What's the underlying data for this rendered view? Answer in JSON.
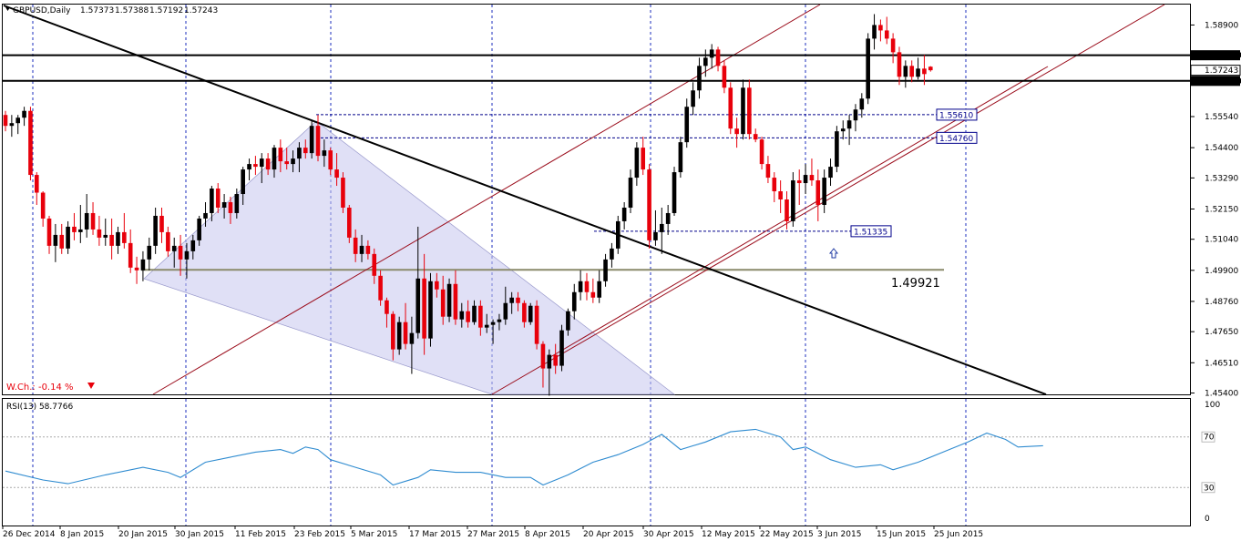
{
  "chart_data": {
    "type": "candlestick",
    "title": "GBPUSD,Daily",
    "ohlc_header": {
      "open": "1.57373",
      "high": "1.57388",
      "low": "1.57192",
      "close": "1.57243"
    },
    "y_ticks": [
      "1.58900",
      "1.57790",
      "1.57243",
      "1.56850",
      "1.55540",
      "1.54400",
      "1.53290",
      "1.52150",
      "1.51040",
      "1.49900",
      "1.48760",
      "1.47650",
      "1.46510",
      "1.45400"
    ],
    "x_ticks": [
      "26 Dec 2014",
      "8 Jan 2015",
      "20 Jan 2015",
      "30 Jan 2015",
      "11 Feb 2015",
      "23 Feb 2015",
      "5 Mar 2015",
      "17 Mar 2015",
      "27 Mar 2015",
      "8 Apr 2015",
      "20 Apr 2015",
      "30 Apr 2015",
      "12 May 2015",
      "22 May 2015",
      "3 Jun 2015",
      "15 Jun 2015",
      "25 Jun 2015"
    ],
    "ylim": [
      1.4535,
      1.5965
    ],
    "candles": [
      {
        "o": 1.556,
        "h": 1.5575,
        "l": 1.55,
        "c": 1.552
      },
      {
        "o": 1.552,
        "h": 1.556,
        "l": 1.548,
        "c": 1.553
      },
      {
        "o": 1.553,
        "h": 1.556,
        "l": 1.549,
        "c": 1.555
      },
      {
        "o": 1.555,
        "h": 1.559,
        "l": 1.552,
        "c": 1.5575
      },
      {
        "o": 1.5575,
        "h": 1.559,
        "l": 1.532,
        "c": 1.534
      },
      {
        "o": 1.534,
        "h": 1.535,
        "l": 1.523,
        "c": 1.5275
      },
      {
        "o": 1.5275,
        "h": 1.528,
        "l": 1.515,
        "c": 1.518
      },
      {
        "o": 1.518,
        "h": 1.519,
        "l": 1.505,
        "c": 1.508
      },
      {
        "o": 1.508,
        "h": 1.516,
        "l": 1.502,
        "c": 1.512
      },
      {
        "o": 1.512,
        "h": 1.516,
        "l": 1.505,
        "c": 1.507
      },
      {
        "o": 1.507,
        "h": 1.517,
        "l": 1.505,
        "c": 1.515
      },
      {
        "o": 1.515,
        "h": 1.52,
        "l": 1.51,
        "c": 1.513
      },
      {
        "o": 1.513,
        "h": 1.523,
        "l": 1.509,
        "c": 1.514
      },
      {
        "o": 1.514,
        "h": 1.527,
        "l": 1.511,
        "c": 1.52
      },
      {
        "o": 1.52,
        "h": 1.524,
        "l": 1.512,
        "c": 1.514
      },
      {
        "o": 1.514,
        "h": 1.519,
        "l": 1.508,
        "c": 1.511
      },
      {
        "o": 1.511,
        "h": 1.518,
        "l": 1.508,
        "c": 1.512
      },
      {
        "o": 1.512,
        "h": 1.518,
        "l": 1.503,
        "c": 1.508
      },
      {
        "o": 1.508,
        "h": 1.515,
        "l": 1.505,
        "c": 1.513
      },
      {
        "o": 1.513,
        "h": 1.52,
        "l": 1.507,
        "c": 1.509
      },
      {
        "o": 1.509,
        "h": 1.514,
        "l": 1.498,
        "c": 1.5
      },
      {
        "o": 1.5,
        "h": 1.504,
        "l": 1.494,
        "c": 1.499
      },
      {
        "o": 1.499,
        "h": 1.506,
        "l": 1.495,
        "c": 1.503
      },
      {
        "o": 1.503,
        "h": 1.511,
        "l": 1.499,
        "c": 1.508
      },
      {
        "o": 1.508,
        "h": 1.522,
        "l": 1.505,
        "c": 1.519
      },
      {
        "o": 1.519,
        "h": 1.522,
        "l": 1.509,
        "c": 1.513
      },
      {
        "o": 1.513,
        "h": 1.515,
        "l": 1.504,
        "c": 1.506
      },
      {
        "o": 1.506,
        "h": 1.511,
        "l": 1.5,
        "c": 1.508
      },
      {
        "o": 1.508,
        "h": 1.512,
        "l": 1.497,
        "c": 1.503
      },
      {
        "o": 1.503,
        "h": 1.509,
        "l": 1.496,
        "c": 1.506
      },
      {
        "o": 1.506,
        "h": 1.512,
        "l": 1.503,
        "c": 1.51
      },
      {
        "o": 1.51,
        "h": 1.519,
        "l": 1.508,
        "c": 1.518
      },
      {
        "o": 1.518,
        "h": 1.524,
        "l": 1.515,
        "c": 1.52
      },
      {
        "o": 1.52,
        "h": 1.53,
        "l": 1.517,
        "c": 1.529
      },
      {
        "o": 1.529,
        "h": 1.531,
        "l": 1.52,
        "c": 1.522
      },
      {
        "o": 1.522,
        "h": 1.527,
        "l": 1.518,
        "c": 1.524
      },
      {
        "o": 1.524,
        "h": 1.526,
        "l": 1.516,
        "c": 1.52
      },
      {
        "o": 1.52,
        "h": 1.529,
        "l": 1.518,
        "c": 1.527
      },
      {
        "o": 1.527,
        "h": 1.537,
        "l": 1.523,
        "c": 1.536
      },
      {
        "o": 1.536,
        "h": 1.54,
        "l": 1.532,
        "c": 1.538
      },
      {
        "o": 1.538,
        "h": 1.541,
        "l": 1.534,
        "c": 1.537
      },
      {
        "o": 1.537,
        "h": 1.542,
        "l": 1.531,
        "c": 1.54
      },
      {
        "o": 1.54,
        "h": 1.542,
        "l": 1.534,
        "c": 1.536
      },
      {
        "o": 1.536,
        "h": 1.545,
        "l": 1.533,
        "c": 1.544
      },
      {
        "o": 1.544,
        "h": 1.547,
        "l": 1.535,
        "c": 1.539
      },
      {
        "o": 1.539,
        "h": 1.544,
        "l": 1.536,
        "c": 1.538
      },
      {
        "o": 1.538,
        "h": 1.543,
        "l": 1.535,
        "c": 1.54
      },
      {
        "o": 1.54,
        "h": 1.546,
        "l": 1.535,
        "c": 1.544
      },
      {
        "o": 1.544,
        "h": 1.547,
        "l": 1.54,
        "c": 1.542
      },
      {
        "o": 1.542,
        "h": 1.554,
        "l": 1.54,
        "c": 1.552
      },
      {
        "o": 1.552,
        "h": 1.556,
        "l": 1.539,
        "c": 1.541
      },
      {
        "o": 1.541,
        "h": 1.547,
        "l": 1.537,
        "c": 1.543
      },
      {
        "o": 1.543,
        "h": 1.544,
        "l": 1.534,
        "c": 1.536
      },
      {
        "o": 1.536,
        "h": 1.542,
        "l": 1.53,
        "c": 1.533
      },
      {
        "o": 1.533,
        "h": 1.535,
        "l": 1.52,
        "c": 1.522
      },
      {
        "o": 1.522,
        "h": 1.523,
        "l": 1.509,
        "c": 1.511
      },
      {
        "o": 1.511,
        "h": 1.514,
        "l": 1.502,
        "c": 1.505
      },
      {
        "o": 1.505,
        "h": 1.512,
        "l": 1.502,
        "c": 1.508
      },
      {
        "o": 1.508,
        "h": 1.51,
        "l": 1.503,
        "c": 1.505
      },
      {
        "o": 1.505,
        "h": 1.507,
        "l": 1.494,
        "c": 1.497
      },
      {
        "o": 1.497,
        "h": 1.499,
        "l": 1.486,
        "c": 1.488
      },
      {
        "o": 1.488,
        "h": 1.489,
        "l": 1.478,
        "c": 1.483
      },
      {
        "o": 1.483,
        "h": 1.484,
        "l": 1.466,
        "c": 1.47
      },
      {
        "o": 1.47,
        "h": 1.482,
        "l": 1.468,
        "c": 1.48
      },
      {
        "o": 1.48,
        "h": 1.487,
        "l": 1.47,
        "c": 1.472
      },
      {
        "o": 1.472,
        "h": 1.482,
        "l": 1.461,
        "c": 1.476
      },
      {
        "o": 1.476,
        "h": 1.515,
        "l": 1.474,
        "c": 1.496
      },
      {
        "o": 1.496,
        "h": 1.505,
        "l": 1.468,
        "c": 1.474
      },
      {
        "o": 1.474,
        "h": 1.498,
        "l": 1.471,
        "c": 1.495
      },
      {
        "o": 1.495,
        "h": 1.498,
        "l": 1.489,
        "c": 1.492
      },
      {
        "o": 1.492,
        "h": 1.497,
        "l": 1.479,
        "c": 1.482
      },
      {
        "o": 1.482,
        "h": 1.496,
        "l": 1.48,
        "c": 1.494
      },
      {
        "o": 1.494,
        "h": 1.499,
        "l": 1.479,
        "c": 1.481
      },
      {
        "o": 1.481,
        "h": 1.487,
        "l": 1.478,
        "c": 1.484
      },
      {
        "o": 1.484,
        "h": 1.488,
        "l": 1.478,
        "c": 1.48
      },
      {
        "o": 1.48,
        "h": 1.488,
        "l": 1.479,
        "c": 1.486
      },
      {
        "o": 1.486,
        "h": 1.488,
        "l": 1.475,
        "c": 1.478
      },
      {
        "o": 1.478,
        "h": 1.483,
        "l": 1.476,
        "c": 1.479
      },
      {
        "o": 1.479,
        "h": 1.481,
        "l": 1.472,
        "c": 1.48
      },
      {
        "o": 1.48,
        "h": 1.483,
        "l": 1.477,
        "c": 1.481
      },
      {
        "o": 1.481,
        "h": 1.493,
        "l": 1.479,
        "c": 1.487
      },
      {
        "o": 1.487,
        "h": 1.491,
        "l": 1.483,
        "c": 1.489
      },
      {
        "o": 1.489,
        "h": 1.491,
        "l": 1.484,
        "c": 1.487
      },
      {
        "o": 1.487,
        "h": 1.488,
        "l": 1.478,
        "c": 1.48
      },
      {
        "o": 1.48,
        "h": 1.487,
        "l": 1.479,
        "c": 1.486
      },
      {
        "o": 1.486,
        "h": 1.488,
        "l": 1.47,
        "c": 1.472
      },
      {
        "o": 1.472,
        "h": 1.473,
        "l": 1.456,
        "c": 1.463
      },
      {
        "o": 1.463,
        "h": 1.47,
        "l": 1.453,
        "c": 1.468
      },
      {
        "o": 1.468,
        "h": 1.472,
        "l": 1.461,
        "c": 1.464
      },
      {
        "o": 1.464,
        "h": 1.479,
        "l": 1.462,
        "c": 1.477
      },
      {
        "o": 1.477,
        "h": 1.485,
        "l": 1.475,
        "c": 1.484
      },
      {
        "o": 1.484,
        "h": 1.494,
        "l": 1.481,
        "c": 1.491
      },
      {
        "o": 1.491,
        "h": 1.499,
        "l": 1.488,
        "c": 1.495
      },
      {
        "o": 1.495,
        "h": 1.498,
        "l": 1.488,
        "c": 1.491
      },
      {
        "o": 1.491,
        "h": 1.496,
        "l": 1.487,
        "c": 1.489
      },
      {
        "o": 1.489,
        "h": 1.499,
        "l": 1.487,
        "c": 1.495
      },
      {
        "o": 1.495,
        "h": 1.505,
        "l": 1.493,
        "c": 1.503
      },
      {
        "o": 1.503,
        "h": 1.509,
        "l": 1.5,
        "c": 1.507
      },
      {
        "o": 1.507,
        "h": 1.519,
        "l": 1.505,
        "c": 1.517
      },
      {
        "o": 1.517,
        "h": 1.524,
        "l": 1.514,
        "c": 1.522
      },
      {
        "o": 1.522,
        "h": 1.536,
        "l": 1.52,
        "c": 1.533
      },
      {
        "o": 1.533,
        "h": 1.546,
        "l": 1.53,
        "c": 1.544
      },
      {
        "o": 1.544,
        "h": 1.548,
        "l": 1.534,
        "c": 1.536
      },
      {
        "o": 1.536,
        "h": 1.538,
        "l": 1.507,
        "c": 1.51
      },
      {
        "o": 1.51,
        "h": 1.521,
        "l": 1.508,
        "c": 1.513
      },
      {
        "o": 1.513,
        "h": 1.522,
        "l": 1.505,
        "c": 1.516
      },
      {
        "o": 1.516,
        "h": 1.523,
        "l": 1.512,
        "c": 1.52
      },
      {
        "o": 1.52,
        "h": 1.537,
        "l": 1.519,
        "c": 1.535
      },
      {
        "o": 1.535,
        "h": 1.548,
        "l": 1.533,
        "c": 1.546
      },
      {
        "o": 1.546,
        "h": 1.562,
        "l": 1.544,
        "c": 1.559
      },
      {
        "o": 1.559,
        "h": 1.568,
        "l": 1.556,
        "c": 1.565
      },
      {
        "o": 1.565,
        "h": 1.577,
        "l": 1.562,
        "c": 1.574
      },
      {
        "o": 1.574,
        "h": 1.58,
        "l": 1.57,
        "c": 1.577
      },
      {
        "o": 1.577,
        "h": 1.582,
        "l": 1.573,
        "c": 1.58
      },
      {
        "o": 1.58,
        "h": 1.581,
        "l": 1.572,
        "c": 1.574
      },
      {
        "o": 1.574,
        "h": 1.576,
        "l": 1.564,
        "c": 1.566
      },
      {
        "o": 1.566,
        "h": 1.568,
        "l": 1.549,
        "c": 1.551
      },
      {
        "o": 1.551,
        "h": 1.555,
        "l": 1.544,
        "c": 1.549
      },
      {
        "o": 1.549,
        "h": 1.569,
        "l": 1.547,
        "c": 1.566
      },
      {
        "o": 1.566,
        "h": 1.569,
        "l": 1.547,
        "c": 1.549
      },
      {
        "o": 1.549,
        "h": 1.551,
        "l": 1.546,
        "c": 1.547
      },
      {
        "o": 1.547,
        "h": 1.548,
        "l": 1.536,
        "c": 1.538
      },
      {
        "o": 1.538,
        "h": 1.541,
        "l": 1.531,
        "c": 1.533
      },
      {
        "o": 1.533,
        "h": 1.535,
        "l": 1.524,
        "c": 1.528
      },
      {
        "o": 1.528,
        "h": 1.532,
        "l": 1.52,
        "c": 1.525
      },
      {
        "o": 1.525,
        "h": 1.528,
        "l": 1.514,
        "c": 1.517
      },
      {
        "o": 1.517,
        "h": 1.535,
        "l": 1.515,
        "c": 1.532
      },
      {
        "o": 1.532,
        "h": 1.536,
        "l": 1.523,
        "c": 1.531
      },
      {
        "o": 1.531,
        "h": 1.538,
        "l": 1.527,
        "c": 1.534
      },
      {
        "o": 1.534,
        "h": 1.54,
        "l": 1.53,
        "c": 1.532
      },
      {
        "o": 1.532,
        "h": 1.536,
        "l": 1.517,
        "c": 1.523
      },
      {
        "o": 1.523,
        "h": 1.536,
        "l": 1.52,
        "c": 1.533
      },
      {
        "o": 1.533,
        "h": 1.54,
        "l": 1.53,
        "c": 1.537
      },
      {
        "o": 1.537,
        "h": 1.552,
        "l": 1.535,
        "c": 1.55
      },
      {
        "o": 1.55,
        "h": 1.554,
        "l": 1.547,
        "c": 1.551
      },
      {
        "o": 1.551,
        "h": 1.556,
        "l": 1.545,
        "c": 1.554
      },
      {
        "o": 1.554,
        "h": 1.56,
        "l": 1.55,
        "c": 1.558
      },
      {
        "o": 1.558,
        "h": 1.564,
        "l": 1.555,
        "c": 1.562
      },
      {
        "o": 1.562,
        "h": 1.586,
        "l": 1.56,
        "c": 1.584
      },
      {
        "o": 1.584,
        "h": 1.593,
        "l": 1.58,
        "c": 1.589
      },
      {
        "o": 1.589,
        "h": 1.591,
        "l": 1.583,
        "c": 1.587
      },
      {
        "o": 1.587,
        "h": 1.592,
        "l": 1.582,
        "c": 1.584
      },
      {
        "o": 1.584,
        "h": 1.586,
        "l": 1.575,
        "c": 1.579
      },
      {
        "o": 1.579,
        "h": 1.581,
        "l": 1.567,
        "c": 1.57
      },
      {
        "o": 1.57,
        "h": 1.576,
        "l": 1.566,
        "c": 1.574
      },
      {
        "o": 1.574,
        "h": 1.576,
        "l": 1.568,
        "c": 1.57
      },
      {
        "o": 1.57,
        "h": 1.577,
        "l": 1.569,
        "c": 1.573
      },
      {
        "o": 1.573,
        "h": 1.578,
        "l": 1.567,
        "c": 1.571
      },
      {
        "o": 1.5737,
        "h": 1.5739,
        "l": 1.5719,
        "c": 1.5724
      }
    ],
    "levels": {
      "resistance": "1.57790",
      "support": "1.56850",
      "current": "1.57243",
      "level_a": "1.55610",
      "level_b": "1.54760",
      "level_c": "1.51335",
      "level_d": "1.49921"
    },
    "weekly_change": "W.Ch.: -0.14 %",
    "rsi": {
      "label": "RSI(13) 58.7766",
      "levels": [
        "70",
        "30"
      ],
      "axis_max": "100",
      "axis_min": "0",
      "anchors": [
        [
          0,
          43
        ],
        [
          6,
          36
        ],
        [
          10,
          33
        ],
        [
          16,
          40
        ],
        [
          22,
          46
        ],
        [
          26,
          42
        ],
        [
          28,
          38
        ],
        [
          32,
          50
        ],
        [
          36,
          54
        ],
        [
          40,
          58
        ],
        [
          44,
          60
        ],
        [
          46,
          57
        ],
        [
          48,
          62
        ],
        [
          50,
          60
        ],
        [
          52,
          52
        ],
        [
          56,
          46
        ],
        [
          60,
          40
        ],
        [
          62,
          32
        ],
        [
          66,
          38
        ],
        [
          68,
          44
        ],
        [
          72,
          42
        ],
        [
          76,
          42
        ],
        [
          80,
          38
        ],
        [
          84,
          38
        ],
        [
          86,
          32
        ],
        [
          88,
          36
        ],
        [
          90,
          40
        ],
        [
          94,
          50
        ],
        [
          98,
          56
        ],
        [
          102,
          64
        ],
        [
          105,
          72
        ],
        [
          108,
          60
        ],
        [
          112,
          66
        ],
        [
          116,
          74
        ],
        [
          120,
          76
        ],
        [
          124,
          70
        ],
        [
          126,
          60
        ],
        [
          128,
          62
        ],
        [
          132,
          52
        ],
        [
          136,
          46
        ],
        [
          140,
          48
        ],
        [
          142,
          44
        ],
        [
          146,
          50
        ],
        [
          150,
          58
        ],
        [
          154,
          66
        ],
        [
          157,
          73
        ],
        [
          160,
          68
        ],
        [
          162,
          62
        ],
        [
          166,
          63
        ]
      ]
    },
    "trendlines": {
      "black_down": [
        [
          0,
          1.5965
        ],
        [
          -1,
          0
        ]
      ],
      "price_wedge_top": [
        22,
        1.496,
        50,
        1.556
      ],
      "price_wedge_bottom": [
        22,
        1.496,
        104,
        1.4545
      ]
    },
    "candle_colors": {
      "up": "#000000",
      "down": "#e8000b"
    },
    "colors": {
      "channel_lines": "#9b0d1c",
      "blue_guides": "#00008b",
      "grid": "#1b2dbd",
      "olive_line": "#8a8a6a",
      "triangle_fill": "#c6c6ee",
      "rsi_line": "#2e8bd0"
    }
  }
}
